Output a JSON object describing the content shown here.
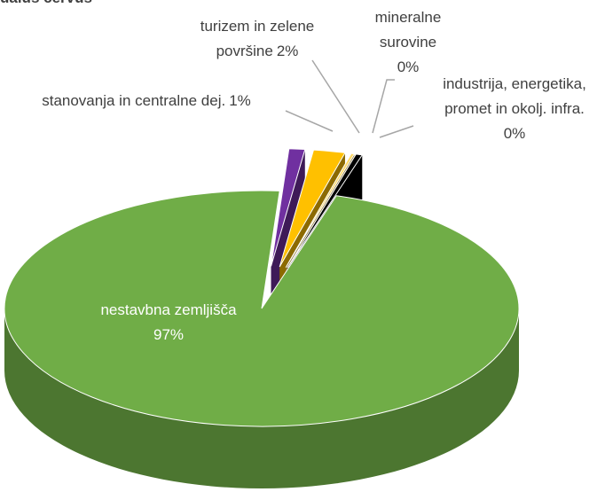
{
  "chart_data": {
    "type": "pie3d",
    "title": "ualus cervus",
    "categories": [
      "stanovanja in centralne dej.",
      "turizem in zelene površine",
      "mineralne surovine",
      "industrija, energetika, promet in okolj. infra.",
      "nestavbna zemljišča"
    ],
    "values": [
      1,
      2,
      0.2,
      0.4,
      97
    ],
    "value_labels": [
      "1%",
      "2%",
      "0%",
      "0%",
      "97%"
    ],
    "colors": [
      "#7030a0",
      "#ffc000",
      "#ffd966",
      "#000000",
      "#70ad47"
    ]
  }
}
